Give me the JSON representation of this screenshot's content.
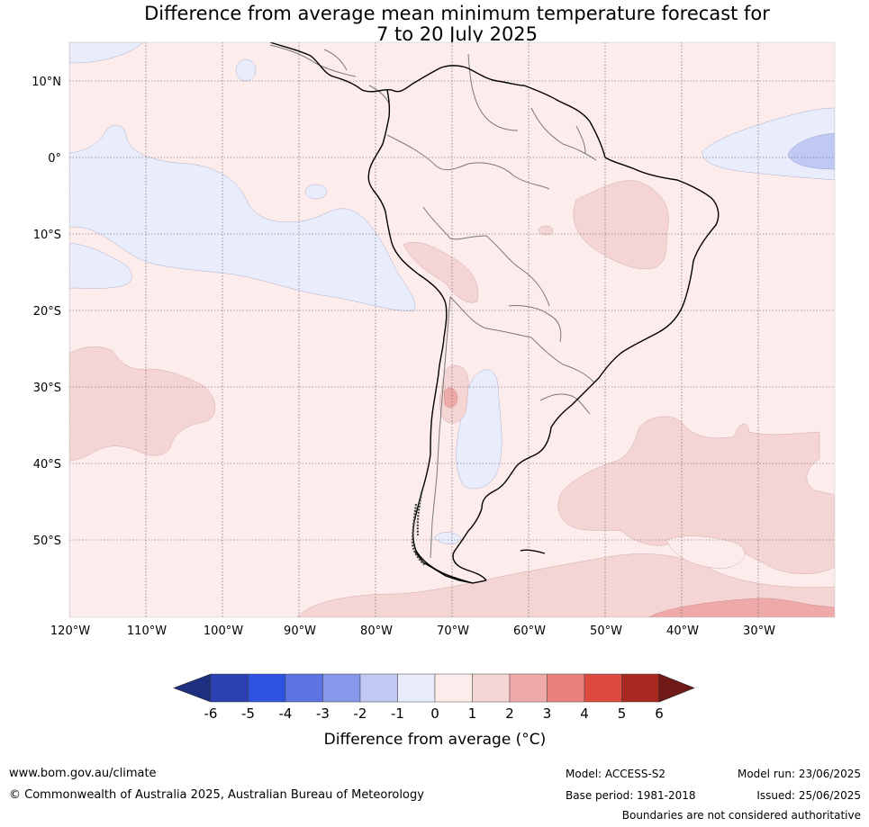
{
  "title": {
    "line1": "Difference from average mean minimum temperature forecast for",
    "line2": "7 to 20 July 2025"
  },
  "axes": {
    "lat_labels": [
      "10°N",
      "0°",
      "10°S",
      "20°S",
      "30°S",
      "40°S",
      "50°S"
    ],
    "lon_labels": [
      "120°W",
      "110°W",
      "100°W",
      "90°W",
      "80°W",
      "70°W",
      "60°W",
      "50°W",
      "40°W",
      "30°W"
    ]
  },
  "colorbar": {
    "label": "Difference from average (°C)",
    "ticks": [
      "-6",
      "-5",
      "-4",
      "-3",
      "-2",
      "-1",
      "0",
      "1",
      "2",
      "3",
      "4",
      "5",
      "6"
    ],
    "colors": [
      "#1f2f80",
      "#2a3fb0",
      "#2f52e0",
      "#5c74e3",
      "#8797ea",
      "#c0c8f4",
      "#e8ecfb",
      "#fcecec",
      "#f5d4d4",
      "#eeaaa8",
      "#e8807c",
      "#dc4a40",
      "#a8291f",
      "#6f1a18"
    ]
  },
  "map_colors": {
    "background": "#fcecec",
    "cool_light": "#e8ecfb",
    "cool_mid": "#c0c8f4",
    "warm_mid": "#f5d4d4",
    "warm_strong": "#eeaaa8"
  },
  "footer": {
    "website": "www.bom.gov.au/climate",
    "copyright": "© Commonwealth of Australia 2025, Australian Bureau of Meteorology",
    "model": "Model: ACCESS-S2",
    "base_period": "Base period: 1981-2018",
    "model_run": "Model run: 23/06/2025",
    "issued": "Issued: 25/06/2025",
    "disclaimer": "Boundaries are not considered authoritative"
  }
}
